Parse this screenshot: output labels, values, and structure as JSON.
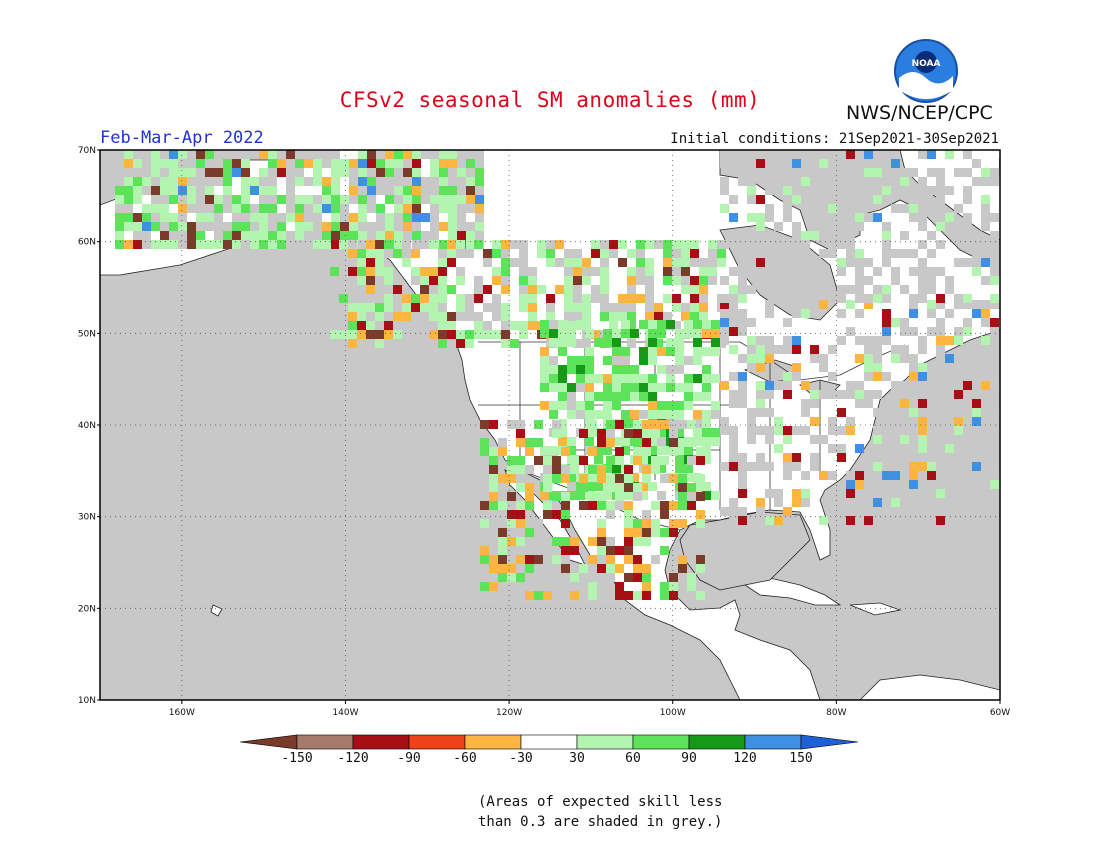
{
  "header": {
    "title": "CFSv2 seasonal SM anomalies (mm)",
    "agency": "NWS/NCEP/CPC",
    "logo_text": "NOAA",
    "season": "Feb-Mar-Apr 2022",
    "initial_conditions": "Initial conditions: 21Sep2021-30Sep2021"
  },
  "map": {
    "lon_range": [
      -170,
      -60
    ],
    "lat_range": [
      10,
      70
    ],
    "lon_ticks": [
      "160W",
      "140W",
      "120W",
      "100W",
      "80W",
      "60W"
    ],
    "lat_ticks": [
      "70N",
      "60N",
      "50N",
      "40N",
      "30N",
      "20N",
      "10N"
    ],
    "grey_meaning": "skill < 0.3"
  },
  "legend": {
    "tick_labels": [
      "-150",
      "-120",
      "-90",
      "-60",
      "-30",
      "30",
      "60",
      "90",
      "120",
      "150"
    ],
    "colors": [
      "#7a3b2a",
      "#a67b6c",
      "#a50f15",
      "#f0421a",
      "#fbb540",
      "#ffffff",
      "#b3f5b0",
      "#5ce35a",
      "#169916",
      "#3f8fe3",
      "#1f5fd8"
    ]
  },
  "footnote": {
    "line1": "(Areas of expected skill less",
    "line2": "than 0.3 are shaded in grey.)"
  },
  "colors": {
    "title": "#e0001a",
    "season": "#2233cc",
    "land": "#ffffff",
    "ocean": "#c8c8c8"
  }
}
